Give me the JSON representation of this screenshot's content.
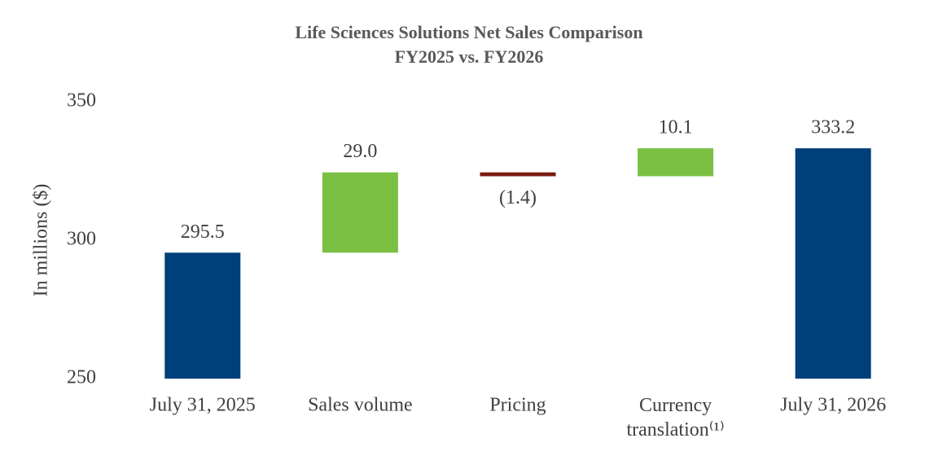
{
  "chart_data": {
    "type": "waterfall",
    "title": "Life Sciences Solutions Net Sales Comparison",
    "subtitle": "FY2025 vs. FY2026",
    "y_label": "In millions ($)",
    "categories": [
      "July 31, 2025",
      "Sales volume",
      "Pricing",
      "Currency translation⁽¹⁾",
      "July 31, 2026"
    ],
    "values": [
      295.5,
      29.0,
      -1.4,
      10.1,
      333.2
    ],
    "value_labels": [
      "295.5",
      "29.0",
      "(1.4)",
      "10.1",
      "333.2"
    ],
    "colors": [
      "#003f7a",
      "#7bc043",
      "#7b1a0f",
      "#7bc043",
      "#003f7a"
    ],
    "ylim": [
      250,
      350
    ],
    "yticks": [
      250,
      300,
      350
    ],
    "grid": false
  }
}
